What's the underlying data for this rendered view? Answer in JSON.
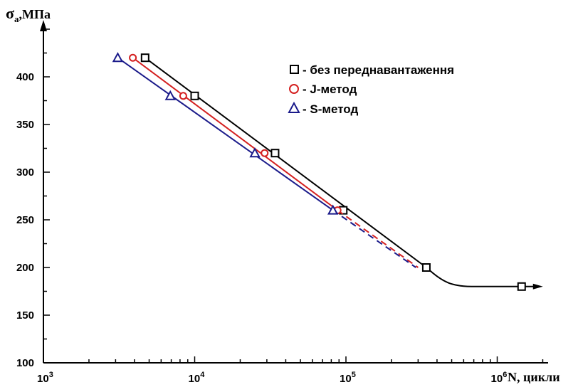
{
  "chart_data": {
    "type": "line",
    "x_scale": "log",
    "xlim": [
      1000,
      2000000
    ],
    "ylim": [
      100,
      450
    ],
    "ylabel": {
      "main": "σ",
      "sub": "a",
      "rest": ",МПа"
    },
    "xlabel": "N, цикли",
    "y_ticks": [
      100,
      150,
      200,
      250,
      300,
      350,
      400
    ],
    "x_ticks": [
      {
        "value": 1000,
        "base": "10",
        "exp": "3"
      },
      {
        "value": 10000,
        "base": "10",
        "exp": "4"
      },
      {
        "value": 100000,
        "base": "10",
        "exp": "5"
      },
      {
        "value": 1000000,
        "base": "10",
        "exp": "6"
      }
    ],
    "grid": false,
    "legend_position": "top-right",
    "series": [
      {
        "name": "- без переднавантаження",
        "marker": "square",
        "color": "#000000",
        "points": [
          [
            4700,
            420
          ],
          [
            10000,
            380
          ],
          [
            34000,
            320
          ],
          [
            96000,
            260
          ],
          [
            340000,
            200
          ],
          [
            1450000,
            180
          ]
        ]
      },
      {
        "name": "- J-метод",
        "marker": "circle",
        "color": "#d42020",
        "points": [
          [
            3900,
            420
          ],
          [
            8400,
            380
          ],
          [
            29000,
            320
          ],
          [
            88000,
            260
          ]
        ],
        "extrapolation": [
          [
            88000,
            260
          ],
          [
            300000,
            200
          ]
        ]
      },
      {
        "name": "- S-метод",
        "marker": "triangle",
        "color": "#1a1a8a",
        "points": [
          [
            3100,
            420
          ],
          [
            6900,
            380
          ],
          [
            25000,
            320
          ],
          [
            82000,
            260
          ]
        ],
        "extrapolation": [
          [
            82000,
            260
          ],
          [
            290000,
            200
          ]
        ]
      }
    ]
  }
}
